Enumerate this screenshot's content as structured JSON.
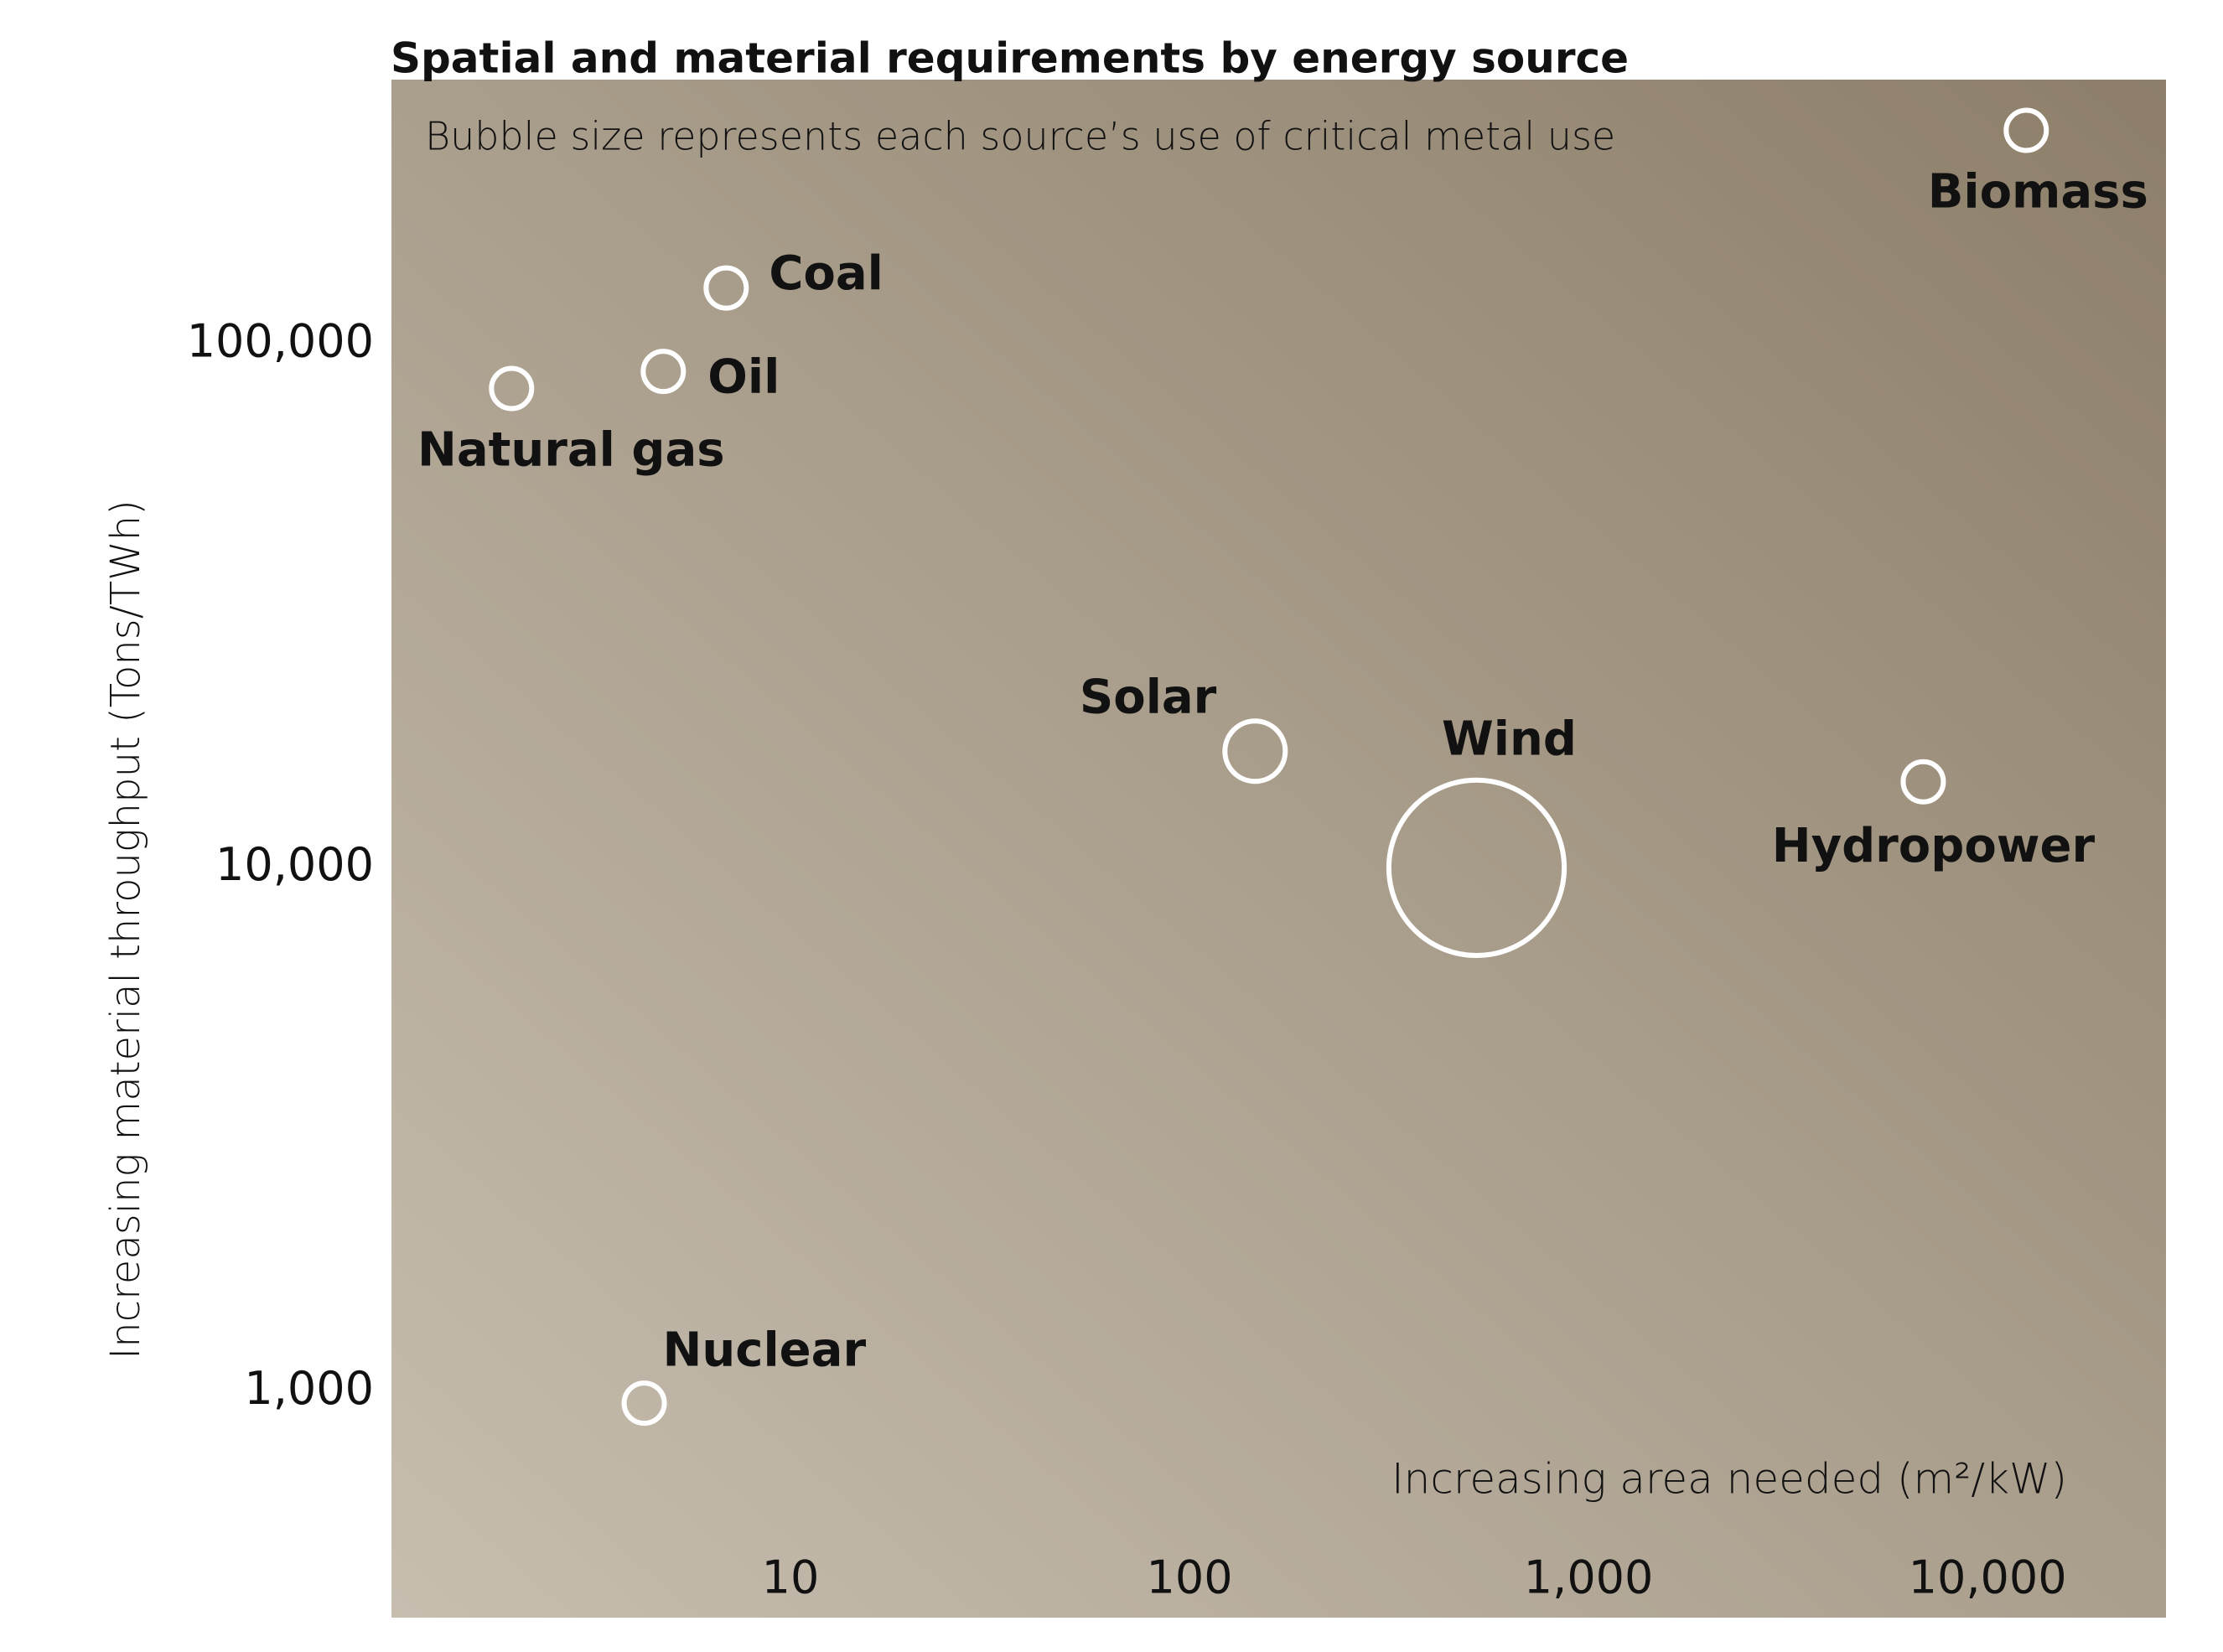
{
  "chart_data": {
    "type": "bubble",
    "title": "Spatial and material requirements by energy source",
    "subtitle": "Bubble size represents each source’s use of critical metal use",
    "x_label": "Increasing area needed (m²/kW)",
    "y_label": "Increasing material throughput (Tons/TWh)",
    "labels": [
      "Biomass",
      "Coal",
      "Oil",
      "Natural gas",
      "Solar",
      "Wind",
      "Hydropower",
      "Nuclear"
    ],
    "x": [
      12500,
      6.9,
      4.8,
      2.0,
      146,
      524,
      6900,
      4.3
    ],
    "values": [
      256000,
      128000,
      88700,
      82300,
      16700,
      10000,
      14600,
      950
    ],
    "sizes": [
      1,
      1,
      1,
      1,
      2.25,
      19,
      1,
      1
    ],
    "color": "#ffffff",
    "xlog": true,
    "ylog": true,
    "xlim": [
      1,
      28000
    ],
    "ylim": [
      370,
      320000
    ],
    "xticks": [
      10,
      100,
      {
        "value": 1000,
        "label": "1,000"
      },
      {
        "value": 10000,
        "label": "10,000"
      }
    ],
    "yticks": [
      {
        "value": 1000,
        "label": "1,000"
      },
      {
        "value": 10000,
        "label": "10,000"
      },
      {
        "value": 100000,
        "label": "100,000"
      }
    ]
  }
}
